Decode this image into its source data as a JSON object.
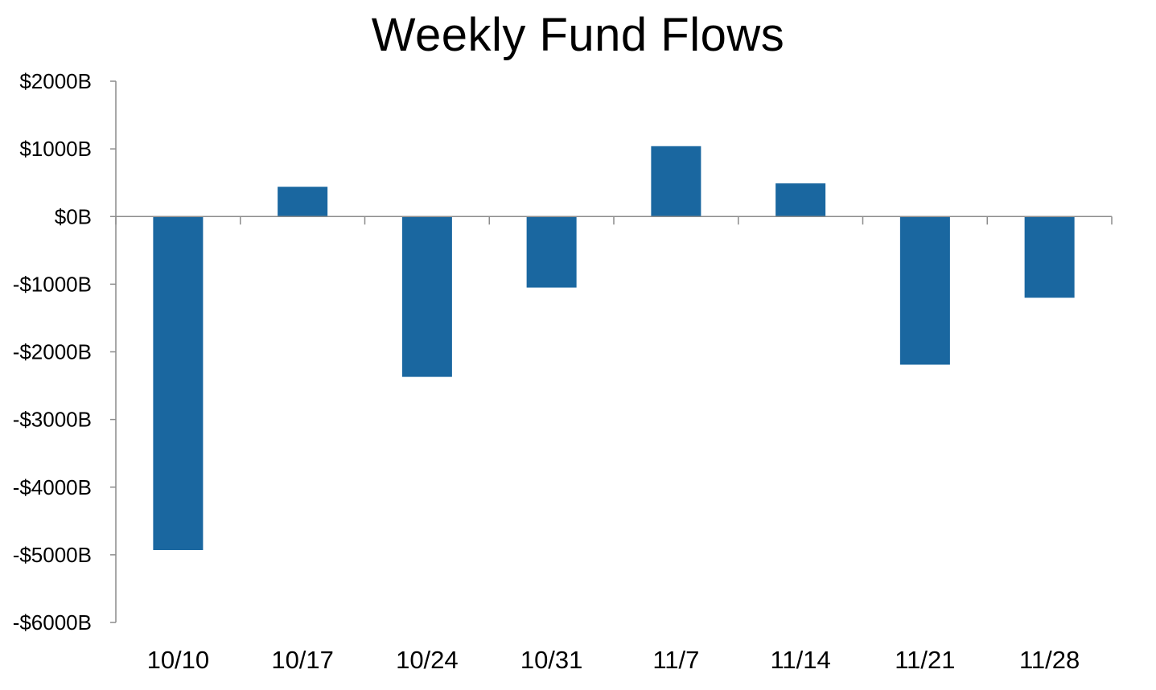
{
  "chart_data": {
    "type": "bar",
    "title": "Weekly Fund Flows",
    "xlabel": "",
    "ylabel": "",
    "categories": [
      "10/10",
      "10/17",
      "10/24",
      "10/31",
      "11/7",
      "11/14",
      "11/21",
      "11/28"
    ],
    "values": [
      -4930,
      440,
      -2370,
      -1050,
      1040,
      490,
      -2190,
      -1200
    ],
    "ylim": [
      -6000,
      2000
    ],
    "yticks": [
      2000,
      1000,
      0,
      -1000,
      -2000,
      -3000,
      -4000,
      -5000,
      -6000
    ],
    "ytick_labels": [
      "$2000B",
      "$1000B",
      "$0B",
      "-$1000B",
      "-$2000B",
      "-$3000B",
      "-$4000B",
      "-$5000B",
      "-$6000B"
    ],
    "bar_color": "#1a67a0",
    "axis_color": "#8c8c8c",
    "grid": false,
    "legend": "none"
  }
}
